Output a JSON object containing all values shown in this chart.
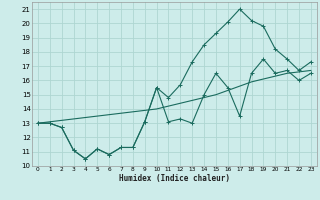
{
  "title": "",
  "xlabel": "Humidex (Indice chaleur)",
  "bg_color": "#cdecea",
  "grid_color": "#aed6d2",
  "line_color": "#1a6b5e",
  "xlim": [
    -0.5,
    23.5
  ],
  "ylim": [
    10,
    21.5
  ],
  "yticks": [
    10,
    11,
    12,
    13,
    14,
    15,
    16,
    17,
    18,
    19,
    20,
    21
  ],
  "xticks": [
    0,
    1,
    2,
    3,
    4,
    5,
    6,
    7,
    8,
    9,
    10,
    11,
    12,
    13,
    14,
    15,
    16,
    17,
    18,
    19,
    20,
    21,
    22,
    23
  ],
  "line_zigzag_x": [
    0,
    1,
    2,
    3,
    4,
    5,
    6,
    7,
    8,
    9,
    10,
    11,
    12,
    13,
    14,
    15,
    16,
    17,
    18,
    19,
    20,
    21,
    22,
    23
  ],
  "line_zigzag_y": [
    13.0,
    13.0,
    12.7,
    11.1,
    10.5,
    11.2,
    10.8,
    11.3,
    11.3,
    13.1,
    15.5,
    13.1,
    13.3,
    13.0,
    15.0,
    16.5,
    15.5,
    13.5,
    16.5,
    17.5,
    16.5,
    16.7,
    16.0,
    16.5
  ],
  "line_peak_x": [
    0,
    1,
    2,
    3,
    4,
    5,
    6,
    7,
    8,
    9,
    10,
    11,
    12,
    13,
    14,
    15,
    16,
    17,
    18,
    19,
    20,
    21,
    22,
    23
  ],
  "line_peak_y": [
    13.0,
    13.0,
    12.7,
    11.1,
    10.5,
    11.2,
    10.8,
    11.3,
    11.3,
    13.1,
    15.5,
    14.8,
    15.7,
    17.3,
    18.5,
    19.3,
    20.1,
    21.0,
    20.2,
    19.8,
    18.2,
    17.5,
    16.7,
    17.3
  ],
  "line_straight_x": [
    0,
    1,
    2,
    3,
    4,
    5,
    6,
    7,
    8,
    9,
    10,
    11,
    12,
    13,
    14,
    15,
    16,
    17,
    18,
    19,
    20,
    21,
    22,
    23
  ],
  "line_straight_y": [
    13.0,
    13.1,
    13.2,
    13.3,
    13.4,
    13.5,
    13.6,
    13.7,
    13.8,
    13.9,
    14.0,
    14.2,
    14.4,
    14.6,
    14.8,
    15.0,
    15.3,
    15.6,
    15.9,
    16.1,
    16.3,
    16.5,
    16.6,
    16.7
  ]
}
